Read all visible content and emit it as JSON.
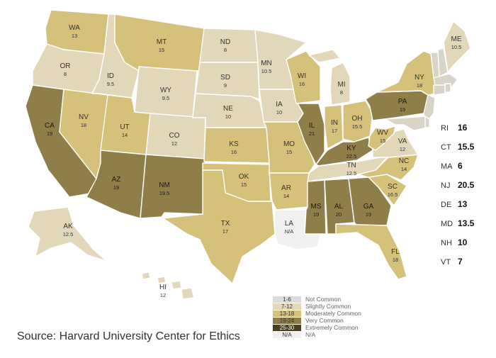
{
  "source": "Source: Harvard University Center for Ethics",
  "colors": {
    "not_common": "#dcdcdc",
    "slightly_common": "#e2d8b9",
    "moderately_common": "#d5c17a",
    "very_common": "#8f7e49",
    "extremely_common": "#4a3f22",
    "na": "#f0f0f0",
    "unknown": "#d9d4c8"
  },
  "legend": [
    {
      "range": "1-6",
      "label": "Not Common",
      "color_key": "not_common"
    },
    {
      "range": "7-12",
      "label": "Slightly Common",
      "color_key": "slightly_common"
    },
    {
      "range": "13-18",
      "label": "Moderately Common",
      "color_key": "moderately_common"
    },
    {
      "range": "19-24",
      "label": "Very Common",
      "color_key": "very_common"
    },
    {
      "range": "25-30",
      "label": "Extremely Common",
      "color_key": "extremely_common"
    },
    {
      "range": "N/A",
      "label": "N/A",
      "color_key": "na"
    }
  ],
  "states": [
    {
      "abbr": "WA",
      "value": "13",
      "color_key": "moderately_common"
    },
    {
      "abbr": "OR",
      "value": "8",
      "color_key": "slightly_common"
    },
    {
      "abbr": "CA",
      "value": "19",
      "color_key": "very_common"
    },
    {
      "abbr": "NV",
      "value": "18",
      "color_key": "moderately_common"
    },
    {
      "abbr": "ID",
      "value": "9.5",
      "color_key": "slightly_common"
    },
    {
      "abbr": "MT",
      "value": "15",
      "color_key": "moderately_common"
    },
    {
      "abbr": "WY",
      "value": "9.5",
      "color_key": "slightly_common"
    },
    {
      "abbr": "UT",
      "value": "14",
      "color_key": "moderately_common"
    },
    {
      "abbr": "AZ",
      "value": "19",
      "color_key": "very_common"
    },
    {
      "abbr": "CO",
      "value": "12",
      "color_key": "slightly_common"
    },
    {
      "abbr": "NM",
      "value": "19.5",
      "color_key": "very_common"
    },
    {
      "abbr": "ND",
      "value": "8",
      "color_key": "slightly_common"
    },
    {
      "abbr": "SD",
      "value": "9",
      "color_key": "slightly_common"
    },
    {
      "abbr": "NE",
      "value": "10",
      "color_key": "slightly_common"
    },
    {
      "abbr": "KS",
      "value": "16",
      "color_key": "moderately_common"
    },
    {
      "abbr": "OK",
      "value": "15",
      "color_key": "moderately_common"
    },
    {
      "abbr": "TX",
      "value": "17",
      "color_key": "moderately_common"
    },
    {
      "abbr": "MN",
      "value": "10.5",
      "color_key": "slightly_common"
    },
    {
      "abbr": "IA",
      "value": "10",
      "color_key": "slightly_common"
    },
    {
      "abbr": "MO",
      "value": "15",
      "color_key": "moderately_common"
    },
    {
      "abbr": "AR",
      "value": "14",
      "color_key": "moderately_common"
    },
    {
      "abbr": "LA",
      "value": "N/A",
      "color_key": "na"
    },
    {
      "abbr": "WI",
      "value": "16",
      "color_key": "moderately_common"
    },
    {
      "abbr": "IL",
      "value": "21",
      "color_key": "very_common"
    },
    {
      "abbr": "MI",
      "value": "8",
      "color_key": "slightly_common"
    },
    {
      "abbr": "IN",
      "value": "17",
      "color_key": "moderately_common"
    },
    {
      "abbr": "OH",
      "value": "15.5",
      "color_key": "moderately_common"
    },
    {
      "abbr": "KY",
      "value": "22.5",
      "color_key": "very_common"
    },
    {
      "abbr": "TN",
      "value": "12.5",
      "color_key": "slightly_common"
    },
    {
      "abbr": "MS",
      "value": "19",
      "color_key": "very_common"
    },
    {
      "abbr": "AL",
      "value": "20",
      "color_key": "very_common"
    },
    {
      "abbr": "GA",
      "value": "19",
      "color_key": "very_common"
    },
    {
      "abbr": "FL",
      "value": "18",
      "color_key": "moderately_common"
    },
    {
      "abbr": "SC",
      "value": "16.5",
      "color_key": "moderately_common"
    },
    {
      "abbr": "NC",
      "value": "14",
      "color_key": "moderately_common"
    },
    {
      "abbr": "VA",
      "value": "12",
      "color_key": "slightly_common"
    },
    {
      "abbr": "WV",
      "value": "15",
      "color_key": "moderately_common"
    },
    {
      "abbr": "PA",
      "value": "19",
      "color_key": "very_common"
    },
    {
      "abbr": "NY",
      "value": "18",
      "color_key": "moderately_common"
    },
    {
      "abbr": "ME",
      "value": "10.5",
      "color_key": "slightly_common"
    },
    {
      "abbr": "AK",
      "value": "12.5",
      "color_key": "slightly_common"
    },
    {
      "abbr": "HI",
      "value": "12",
      "color_key": "slightly_common"
    }
  ],
  "small_states": [
    {
      "abbr": "RI",
      "value": "16"
    },
    {
      "abbr": "CT",
      "value": "15.5"
    },
    {
      "abbr": "MA",
      "value": "6"
    },
    {
      "abbr": "NJ",
      "value": "20.5"
    },
    {
      "abbr": "DE",
      "value": "13"
    },
    {
      "abbr": "MD",
      "value": "13.5"
    },
    {
      "abbr": "NH",
      "value": "10"
    },
    {
      "abbr": "VT",
      "value": "7"
    }
  ]
}
